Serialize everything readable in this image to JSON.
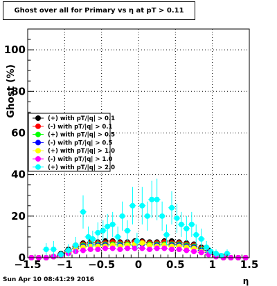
{
  "title": "Ghost over all for Primary vs   η at pT > 0.11",
  "footer": "Sun Apr 10 08:41:29 2016",
  "chart_data": {
    "type": "scatter",
    "xlabel": "η",
    "ylabel": "Ghost (%)",
    "xlim": [
      -1.5,
      1.5
    ],
    "ylim": [
      0,
      110
    ],
    "x_ticks": [
      "−1.5",
      "−1",
      "−0.5",
      "0",
      "0.5",
      "1",
      "1.5"
    ],
    "y_ticks": [
      "0",
      "20",
      "40",
      "60",
      "80",
      "100"
    ],
    "grid": true,
    "legend_position": "middle-left",
    "series": [
      {
        "name": "(+) with pT/|q| > 0.1",
        "color": "#000000",
        "x": [
          -1.45,
          -1.35,
          -1.25,
          -1.15,
          -1.05,
          -0.95,
          -0.85,
          -0.75,
          -0.65,
          -0.55,
          -0.45,
          -0.35,
          -0.25,
          -0.15,
          -0.05,
          0.05,
          0.15,
          0.25,
          0.35,
          0.45,
          0.55,
          0.65,
          0.75,
          0.85,
          0.95,
          1.05,
          1.15,
          1.25,
          1.35,
          1.45
        ],
        "y": [
          0,
          0,
          0,
          0.5,
          2,
          4,
          6,
          7,
          7.5,
          7.5,
          8,
          8,
          7.5,
          7.5,
          8,
          8,
          7.5,
          7.5,
          8,
          8,
          7.5,
          7,
          6.5,
          5,
          3.5,
          1.5,
          0.5,
          0,
          0,
          0
        ]
      },
      {
        "name": "(-) with pT/|q| > 0.1",
        "color": "#ff0000",
        "x": [
          -1.45,
          -1.35,
          -1.25,
          -1.15,
          -1.05,
          -0.95,
          -0.85,
          -0.75,
          -0.65,
          -0.55,
          -0.45,
          -0.35,
          -0.25,
          -0.15,
          -0.05,
          0.05,
          0.15,
          0.25,
          0.35,
          0.45,
          0.55,
          0.65,
          0.75,
          0.85,
          0.95,
          1.05,
          1.15,
          1.25,
          1.35,
          1.45
        ],
        "y": [
          0,
          0,
          0,
          0.5,
          1.5,
          3.5,
          5.5,
          6.5,
          7,
          7,
          7,
          7.5,
          7,
          7,
          7.5,
          7.5,
          7,
          7,
          7.5,
          7,
          7,
          6.5,
          6,
          4.5,
          3,
          1,
          0.5,
          0,
          0,
          0
        ]
      },
      {
        "name": "(+) with pT/|q| > 0.5",
        "color": "#00ff00",
        "x": [
          -1.45,
          -1.35,
          -1.25,
          -1.15,
          -1.05,
          -0.95,
          -0.85,
          -0.75,
          -0.65,
          -0.55,
          -0.45,
          -0.35,
          -0.25,
          -0.15,
          -0.05,
          0.05,
          0.15,
          0.25,
          0.35,
          0.45,
          0.55,
          0.65,
          0.75,
          0.85,
          0.95,
          1.05,
          1.15,
          1.25,
          1.35,
          1.45
        ],
        "y": [
          0,
          0,
          0,
          0.5,
          1.5,
          3,
          5,
          6,
          6.5,
          6.5,
          6.5,
          6.5,
          6.5,
          6.5,
          6.5,
          7,
          6.5,
          6.5,
          6.5,
          6.5,
          6.5,
          6,
          5.5,
          4,
          2.5,
          1,
          0,
          0,
          0,
          0
        ]
      },
      {
        "name": "(-) with pT/|q| > 0.5",
        "color": "#0000ff",
        "x": [
          -1.45,
          -1.35,
          -1.25,
          -1.15,
          -1.05,
          -0.95,
          -0.85,
          -0.75,
          -0.65,
          -0.55,
          -0.45,
          -0.35,
          -0.25,
          -0.15,
          -0.05,
          0.05,
          0.15,
          0.25,
          0.35,
          0.45,
          0.55,
          0.65,
          0.75,
          0.85,
          0.95,
          1.05,
          1.15,
          1.25,
          1.35,
          1.45
        ],
        "y": [
          0,
          0,
          0,
          0.5,
          1.5,
          3,
          4.5,
          5.5,
          6,
          6,
          6,
          6,
          6,
          6,
          6,
          6.5,
          6,
          6,
          6,
          6,
          6,
          5.5,
          5,
          3.5,
          2.5,
          1,
          0,
          0,
          0,
          0
        ]
      },
      {
        "name": "(+) with pT/|q| > 1.0",
        "color": "#ffff00",
        "x": [
          -1.45,
          -1.35,
          -1.25,
          -1.15,
          -1.05,
          -0.95,
          -0.85,
          -0.75,
          -0.65,
          -0.55,
          -0.45,
          -0.35,
          -0.25,
          -0.15,
          -0.05,
          0.05,
          0.15,
          0.25,
          0.35,
          0.45,
          0.55,
          0.65,
          0.75,
          0.85,
          0.95,
          1.05,
          1.15,
          1.25,
          1.35,
          1.45
        ],
        "y": [
          0,
          0,
          0,
          0.5,
          1,
          2.5,
          4,
          5,
          5.5,
          5.5,
          5.5,
          6,
          5.5,
          6,
          6.5,
          7,
          6,
          5.5,
          6,
          5.5,
          5.5,
          5,
          4.5,
          3,
          2,
          1,
          0,
          0,
          0,
          0
        ]
      },
      {
        "name": "(-) with pT/|q| > 1.0",
        "color": "#ff00ff",
        "x": [
          -1.45,
          -1.35,
          -1.25,
          -1.15,
          -1.05,
          -0.95,
          -0.85,
          -0.75,
          -0.65,
          -0.55,
          -0.45,
          -0.35,
          -0.25,
          -0.15,
          -0.05,
          0.05,
          0.15,
          0.25,
          0.35,
          0.45,
          0.55,
          0.65,
          0.75,
          0.85,
          0.95,
          1.05,
          1.15,
          1.25,
          1.35,
          1.45
        ],
        "y": [
          0,
          0,
          0,
          0.5,
          1,
          2,
          3,
          3.5,
          4,
          4,
          4.5,
          4.5,
          4,
          4.5,
          4.5,
          4.5,
          4,
          4.5,
          4.5,
          4,
          4,
          3.5,
          3,
          2.5,
          1.5,
          0.5,
          0,
          0,
          0,
          0
        ]
      },
      {
        "name": "(+) with pT/|q| > 2.0",
        "color": "#00ffff",
        "x": [
          -1.25,
          -1.15,
          -1.05,
          -0.95,
          -0.85,
          -0.75,
          -0.68,
          -0.62,
          -0.55,
          -0.48,
          -0.42,
          -0.35,
          -0.28,
          -0.22,
          -0.15,
          -0.08,
          -0.02,
          0.05,
          0.12,
          0.18,
          0.25,
          0.32,
          0.38,
          0.45,
          0.52,
          0.58,
          0.65,
          0.72,
          0.78,
          0.85,
          0.92,
          0.98,
          1.05,
          1.12,
          1.2
        ],
        "y": [
          4,
          4,
          1.5,
          3.5,
          6,
          22,
          10,
          9,
          12,
          13,
          15,
          16,
          10,
          20,
          13,
          25,
          8,
          25,
          20,
          28,
          28,
          20,
          11,
          24,
          19,
          16,
          14,
          16,
          11,
          9,
          5,
          3,
          2,
          1,
          2
        ],
        "err": [
          3,
          4,
          2,
          3,
          4,
          8,
          5,
          4,
          5,
          5,
          6,
          6,
          5,
          7,
          5,
          9,
          4,
          9,
          7,
          9,
          10,
          7,
          5,
          8,
          7,
          6,
          6,
          6,
          5,
          5,
          3,
          2,
          2,
          1,
          2
        ]
      }
    ]
  }
}
